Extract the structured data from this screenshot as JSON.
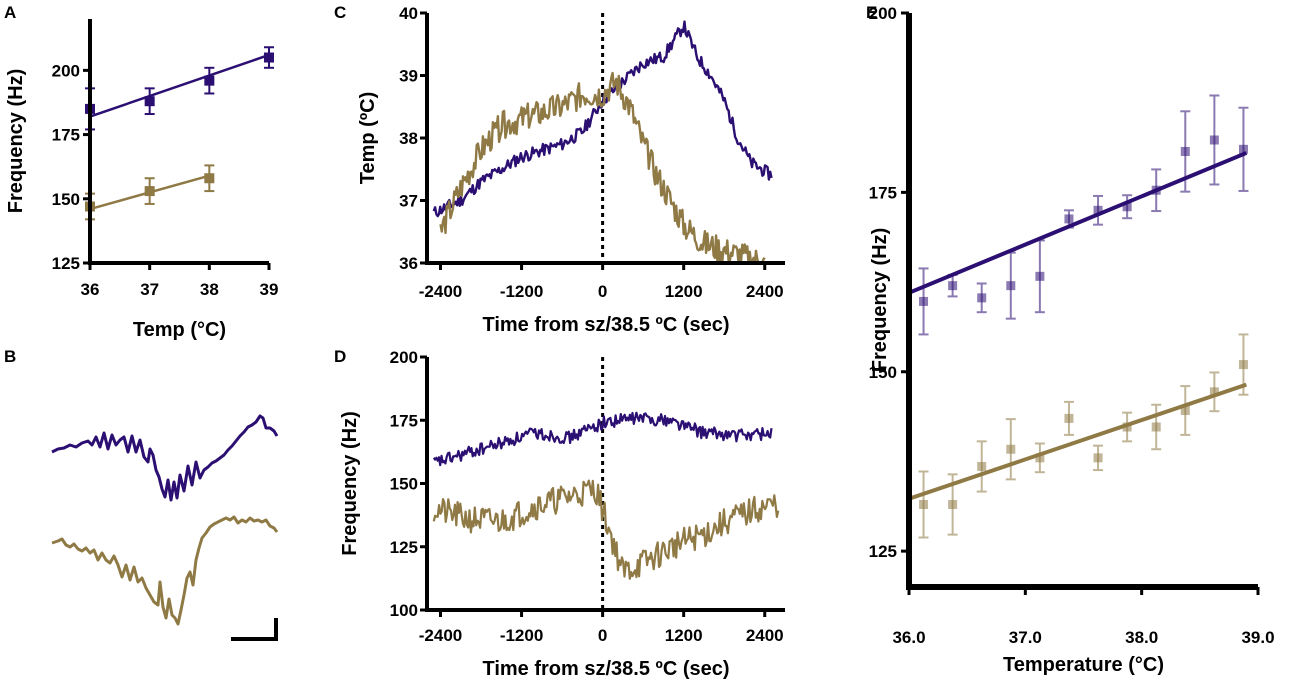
{
  "colors": {
    "purple": "#2c0f72",
    "gold": "#8f7a45",
    "axis": "#000000"
  },
  "panels": {
    "A": {
      "letter": "A"
    },
    "B": {
      "letter": "B"
    },
    "C": {
      "letter": "C"
    },
    "D": {
      "letter": "D"
    },
    "E": {
      "letter": "E"
    }
  },
  "chart_data": [
    {
      "panel": "A",
      "type": "scatter",
      "title": "",
      "xlabel": "Temp (°C)",
      "ylabel": "Frequency (Hz)",
      "xlim": [
        36,
        39
      ],
      "ylim": [
        125,
        220
      ],
      "xticks": [
        36,
        37,
        38,
        39
      ],
      "xtick_labels": [
        "36",
        "37",
        "38",
        "39"
      ],
      "yticks": [
        125,
        150,
        175,
        200
      ],
      "ytick_labels": [
        "125",
        "150",
        "175",
        "200"
      ],
      "series": [
        {
          "name": "purple",
          "color": "#2c0f72",
          "x": [
            36,
            37,
            38,
            39
          ],
          "y": [
            185,
            188,
            196,
            205
          ],
          "err": [
            8,
            5,
            5,
            4
          ],
          "fit": [
            [
              36,
              182
            ],
            [
              39,
              206
            ]
          ]
        },
        {
          "name": "gold",
          "color": "#8f7a45",
          "x": [
            36,
            37,
            38
          ],
          "y": [
            147,
            153,
            158
          ],
          "err": [
            5,
            5,
            5
          ],
          "fit": [
            [
              36,
              146
            ],
            [
              38,
              159
            ]
          ]
        }
      ]
    },
    {
      "panel": "B",
      "type": "line",
      "title": "",
      "note": "example waveforms with scale bar; no axes shown",
      "series": [
        {
          "name": "purple",
          "color": "#2c0f72"
        },
        {
          "name": "gold",
          "color": "#8f7a45"
        }
      ]
    },
    {
      "panel": "C",
      "type": "line",
      "title": "",
      "xlabel": "Time from sz/38.5 ºC (sec)",
      "ylabel": "Temp (ºC)",
      "xlim": [
        -2600,
        2700
      ],
      "ylim": [
        36,
        40
      ],
      "xticks": [
        -2400,
        -1200,
        0,
        1200,
        2400
      ],
      "xtick_labels": [
        "-2400",
        "-1200",
        "0",
        "1200",
        "2400"
      ],
      "yticks": [
        36,
        37,
        38,
        39,
        40
      ],
      "ytick_labels": [
        "36",
        "37",
        "38",
        "39",
        "40"
      ],
      "vline_x": 0,
      "series": [
        {
          "name": "purple",
          "color": "#2c0f72",
          "x": [
            -2500,
            -2100,
            -1800,
            -1500,
            -1200,
            -900,
            -600,
            -300,
            0,
            300,
            600,
            900,
            1200,
            1400,
            1600,
            1800,
            2000,
            2200,
            2500
          ],
          "y": [
            36.8,
            37.0,
            37.3,
            37.5,
            37.7,
            37.8,
            37.9,
            38.1,
            38.6,
            38.9,
            39.2,
            39.3,
            39.8,
            39.3,
            39.0,
            38.6,
            38.0,
            37.6,
            37.4
          ]
        },
        {
          "name": "gold",
          "color": "#8f7a45",
          "x": [
            -2400,
            -2100,
            -1800,
            -1500,
            -1200,
            -900,
            -600,
            -300,
            0,
            200,
            400,
            600,
            800,
            1000,
            1200,
            1500,
            1800,
            2100,
            2400
          ],
          "y": [
            36.5,
            37.2,
            37.8,
            38.2,
            38.3,
            38.4,
            38.5,
            38.7,
            38.7,
            38.9,
            38.5,
            37.9,
            37.4,
            37.0,
            36.6,
            36.3,
            36.2,
            36.1,
            36.0
          ]
        }
      ]
    },
    {
      "panel": "D",
      "type": "line",
      "title": "",
      "xlabel": "Time from sz/38.5 ºC (sec)",
      "ylabel": "Frequency (Hz)",
      "xlim": [
        -2600,
        2700
      ],
      "ylim": [
        100,
        200
      ],
      "xticks": [
        -2400,
        -1200,
        0,
        1200,
        2400
      ],
      "xtick_labels": [
        "-2400",
        "-1200",
        "0",
        "1200",
        "2400"
      ],
      "yticks": [
        100,
        125,
        150,
        175,
        200
      ],
      "ytick_labels": [
        "100",
        "125",
        "150",
        "175",
        "200"
      ],
      "vline_x": 0,
      "series": [
        {
          "name": "purple",
          "color": "#2c0f72",
          "x": [
            -2500,
            -2000,
            -1500,
            -1000,
            -500,
            0,
            500,
            1000,
            1500,
            2000,
            2500
          ],
          "y": [
            158,
            162,
            166,
            170,
            168,
            174,
            176,
            175,
            170,
            169,
            170
          ]
        },
        {
          "name": "gold",
          "color": "#8f7a45",
          "x": [
            -2500,
            -2000,
            -1500,
            -1000,
            -500,
            -100,
            300,
            700,
            1100,
            1500,
            1900,
            2300,
            2600
          ],
          "y": [
            140,
            136,
            135,
            141,
            145,
            148,
            115,
            120,
            126,
            130,
            136,
            140,
            142
          ]
        }
      ]
    },
    {
      "panel": "E",
      "type": "scatter",
      "title": "",
      "xlabel": "Temperature (°C)",
      "ylabel": "Frequency (Hz)",
      "xlim": [
        36.0,
        39.0
      ],
      "ylim": [
        120,
        200
      ],
      "xticks": [
        36.0,
        37.0,
        38.0,
        39.0
      ],
      "xtick_labels": [
        "36.0",
        "37.0",
        "38.0",
        "39.0"
      ],
      "yticks": [
        125,
        150,
        175,
        200
      ],
      "ytick_labels": [
        "125",
        "150",
        "175",
        "200"
      ],
      "series": [
        {
          "name": "purple",
          "color": "#2c0f72",
          "x": [
            36.125,
            36.375,
            36.625,
            36.875,
            37.125,
            37.375,
            37.625,
            37.875,
            38.125,
            38.375,
            38.625,
            38.875
          ],
          "y": [
            159.8,
            162.0,
            160.3,
            162.0,
            163.3,
            171.3,
            172.5,
            173.0,
            175.3,
            180.7,
            182.3,
            181.0
          ],
          "err": [
            4.6,
            1.5,
            2.0,
            4.6,
            5.0,
            1.2,
            2.0,
            1.6,
            2.9,
            5.6,
            6.2,
            5.8
          ],
          "fit": [
            [
              36.0,
              161.0
            ],
            [
              38.9,
              180.5
            ]
          ]
        },
        {
          "name": "gold",
          "color": "#8f7a45",
          "x": [
            36.125,
            36.375,
            36.625,
            36.875,
            37.125,
            37.375,
            37.625,
            37.875,
            38.125,
            38.375,
            38.625,
            38.875
          ],
          "y": [
            131.5,
            131.5,
            136.8,
            139.2,
            138.0,
            143.5,
            138.0,
            142.3,
            142.3,
            144.6,
            147.2,
            151.0
          ],
          "err": [
            4.6,
            4.2,
            3.5,
            4.2,
            2.0,
            2.3,
            1.7,
            2.0,
            3.1,
            3.4,
            2.7,
            4.2
          ],
          "fit": [
            [
              36.0,
              132.3
            ],
            [
              38.9,
              148.2
            ]
          ]
        }
      ]
    }
  ]
}
